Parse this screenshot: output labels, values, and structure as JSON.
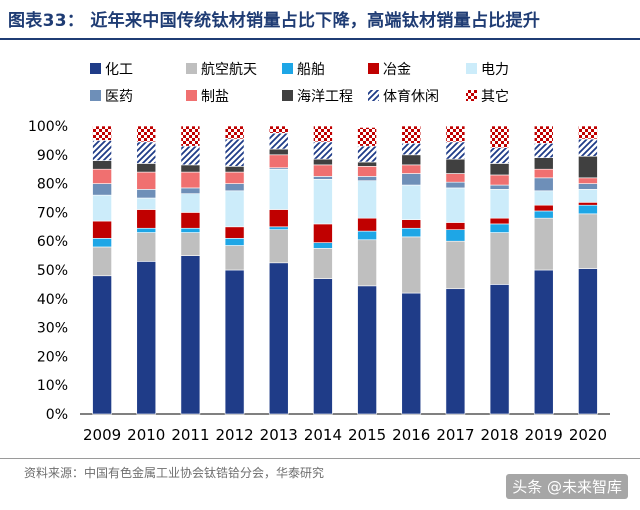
{
  "header": {
    "title": "图表33：  近年来中国传统钛材销量占比下降，高端钛材销量占比提升"
  },
  "footer": {
    "source": "资料来源：中国有色金属工业协会钛锆铪分会，华泰研究",
    "watermark": "头条 @未来智库"
  },
  "colors": {
    "化工": "#1f3c88",
    "航空航天": "#bfbfbf",
    "船舶": "#1ea6e6",
    "冶金": "#c00000",
    "电力": "#ccecfa",
    "医药": "#6e8fb8",
    "制盐": "#f07070",
    "海洋工程": "#404040",
    "体育休闲": "#1f3c88",
    "其它": "#c00000"
  },
  "chart_data": {
    "type": "bar",
    "stacked": true,
    "title": "",
    "xlabel": "",
    "ylabel": "",
    "ylim": [
      0,
      100
    ],
    "yticks": [
      "0%",
      "10%",
      "20%",
      "30%",
      "40%",
      "50%",
      "60%",
      "70%",
      "80%",
      "90%",
      "100%"
    ],
    "legend_position": "top",
    "categories": [
      "2009",
      "2010",
      "2011",
      "2012",
      "2013",
      "2014",
      "2015",
      "2016",
      "2017",
      "2018",
      "2019",
      "2020"
    ],
    "series": [
      {
        "name": "化工",
        "values": [
          48,
          53,
          55,
          50,
          52.5,
          47,
          44.5,
          42,
          43.5,
          45,
          50,
          50.5
        ]
      },
      {
        "name": "航空航天",
        "values": [
          10,
          10,
          8,
          8.5,
          11.5,
          10.5,
          16,
          19.5,
          16.5,
          18,
          18,
          19
        ]
      },
      {
        "name": "船舶",
        "values": [
          3,
          1.5,
          1.5,
          2.5,
          1,
          2,
          3,
          3,
          4,
          3,
          2.5,
          3
        ]
      },
      {
        "name": "冶金",
        "values": [
          6,
          6.5,
          5.5,
          4,
          6,
          6.5,
          4.5,
          3,
          2.5,
          2,
          2,
          1
        ]
      },
      {
        "name": "电力",
        "values": [
          9,
          4,
          6.5,
          12.5,
          14,
          15.5,
          13,
          12,
          12,
          10,
          5,
          4.5
        ]
      },
      {
        "name": "医药",
        "values": [
          4,
          3,
          2,
          2.5,
          0.5,
          1,
          1.5,
          4,
          2,
          1.5,
          4.5,
          2
        ]
      },
      {
        "name": "制盐",
        "values": [
          5,
          6,
          5.5,
          4,
          4.5,
          4,
          3.5,
          3,
          3,
          3.5,
          3,
          2
        ]
      },
      {
        "name": "海洋工程",
        "values": [
          3,
          3,
          2.5,
          2,
          2,
          2,
          1.5,
          3.5,
          5,
          4,
          4,
          7.5
        ]
      },
      {
        "name": "体育休闲",
        "values": [
          7,
          7.5,
          6.5,
          9.5,
          5.5,
          6,
          5.5,
          4,
          6,
          5.5,
          5,
          6
        ]
      },
      {
        "name": "其它",
        "values": [
          5,
          5.5,
          7,
          4.5,
          2.5,
          5.5,
          6.5,
          6,
          5.5,
          7.5,
          6,
          4.5
        ]
      }
    ]
  }
}
